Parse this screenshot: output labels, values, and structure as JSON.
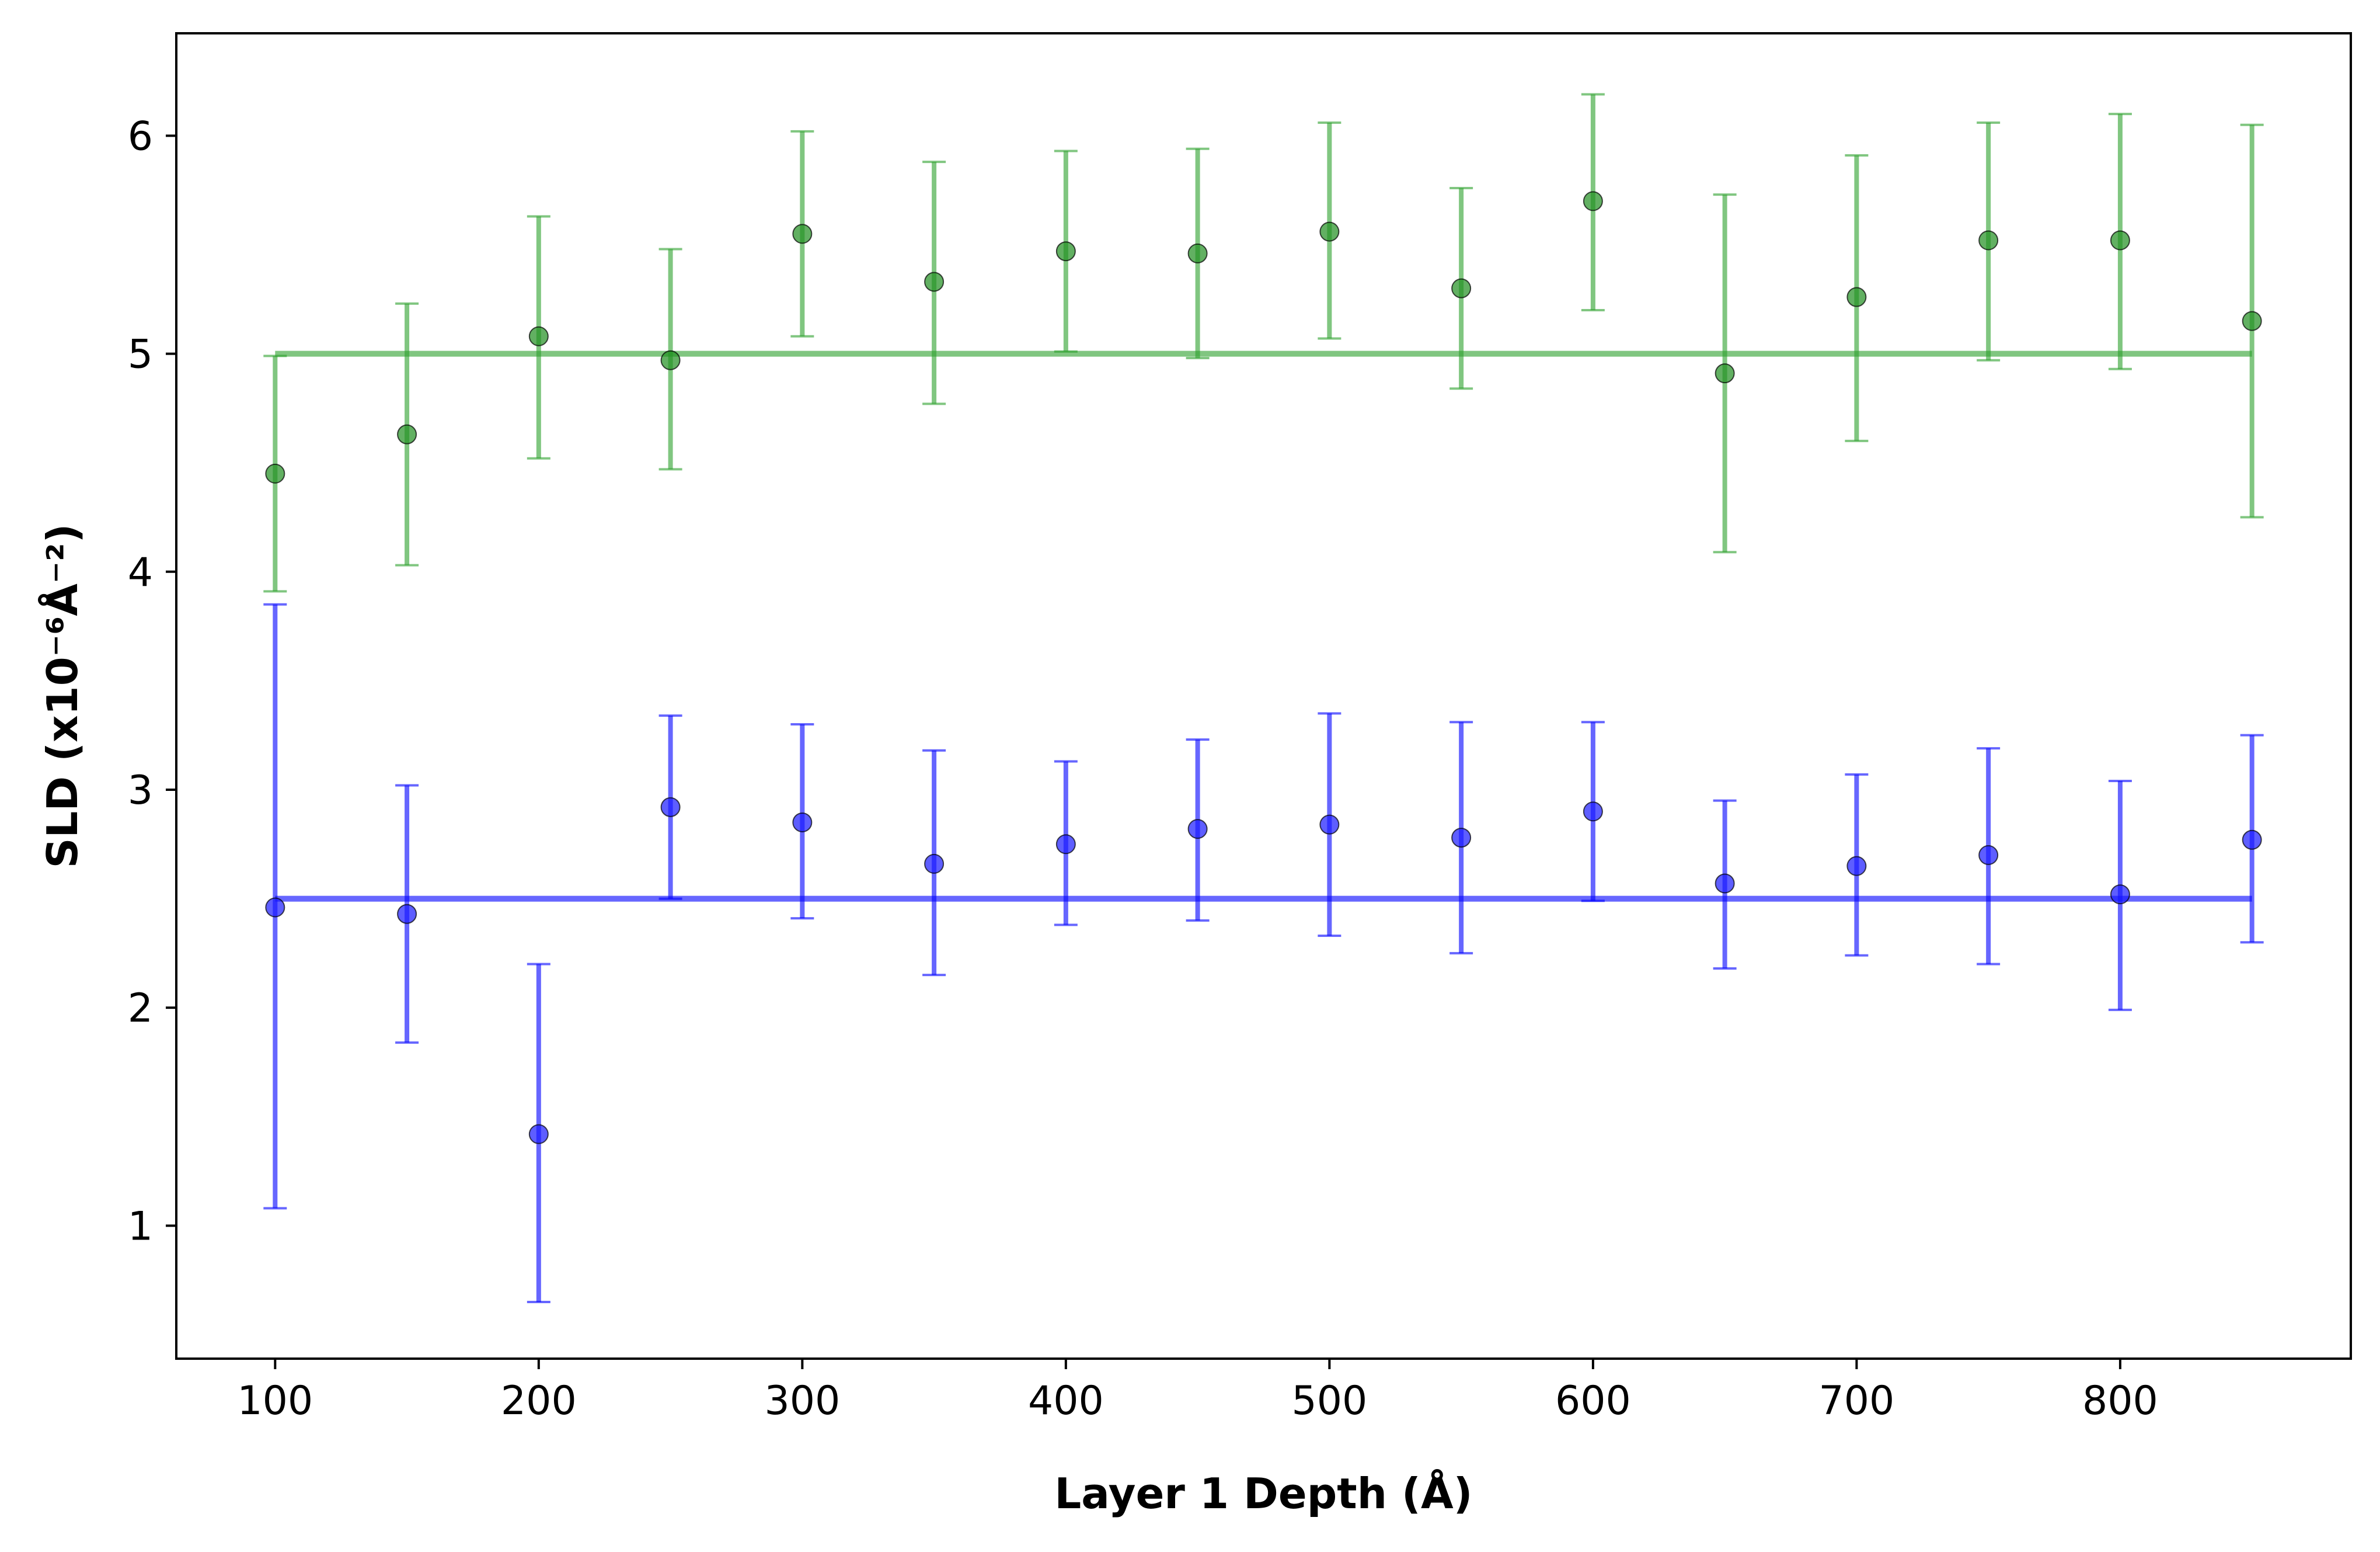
{
  "chart_data": {
    "type": "scatter",
    "title": "",
    "xlabel": "Layer 1 Depth (Å)",
    "ylabel": "SLD (x10⁻⁶Å⁻²)",
    "xlim": [
      62.5,
      887.5
    ],
    "ylim": [
      0.39,
      6.47
    ],
    "xticks": [
      100,
      200,
      300,
      400,
      500,
      600,
      700,
      800
    ],
    "yticks": [
      1,
      2,
      3,
      4,
      5,
      6
    ],
    "grid": false,
    "legend": "none",
    "series": [
      {
        "color": "#2ca02c",
        "marker_color": "#1f8f1f",
        "x": [
          100,
          150,
          200,
          250,
          300,
          350,
          400,
          450,
          500,
          550,
          600,
          650,
          700,
          750,
          800,
          850
        ],
        "y": [
          4.45,
          4.63,
          5.08,
          4.97,
          5.55,
          5.33,
          5.47,
          5.46,
          5.56,
          5.3,
          5.7,
          4.91,
          5.26,
          5.52,
          5.52,
          5.15
        ],
        "yerr_low": [
          3.91,
          4.03,
          4.52,
          4.47,
          5.08,
          4.77,
          5.01,
          4.98,
          5.07,
          4.84,
          5.2,
          4.09,
          4.6,
          4.97,
          4.93,
          4.25
        ],
        "yerr_high": [
          4.99,
          5.23,
          5.63,
          5.48,
          6.02,
          5.88,
          5.93,
          5.94,
          6.06,
          5.76,
          6.19,
          5.73,
          5.91,
          6.06,
          6.1,
          6.05
        ]
      },
      {
        "color": "#0000ff",
        "marker_color": "#1a1aff",
        "x": [
          100,
          150,
          200,
          250,
          300,
          350,
          400,
          450,
          500,
          550,
          600,
          650,
          700,
          750,
          800,
          850
        ],
        "y": [
          2.46,
          2.43,
          1.42,
          2.92,
          2.85,
          2.66,
          2.75,
          2.82,
          2.84,
          2.78,
          2.9,
          2.57,
          2.65,
          2.7,
          2.52,
          2.77
        ],
        "yerr_low": [
          1.08,
          1.84,
          0.65,
          2.5,
          2.41,
          2.15,
          2.38,
          2.4,
          2.33,
          2.25,
          2.49,
          2.18,
          2.24,
          2.2,
          1.99,
          2.3
        ],
        "yerr_high": [
          3.85,
          3.02,
          2.2,
          3.34,
          3.3,
          3.18,
          3.13,
          3.23,
          3.35,
          3.31,
          3.31,
          2.95,
          3.07,
          3.19,
          3.04,
          3.25
        ]
      }
    ],
    "reference_lines": [
      {
        "color": "#2ca02c",
        "y": 5.0,
        "x": [
          100,
          850
        ]
      },
      {
        "color": "#0000ff",
        "y": 2.5,
        "x": [
          100,
          850
        ]
      }
    ]
  }
}
